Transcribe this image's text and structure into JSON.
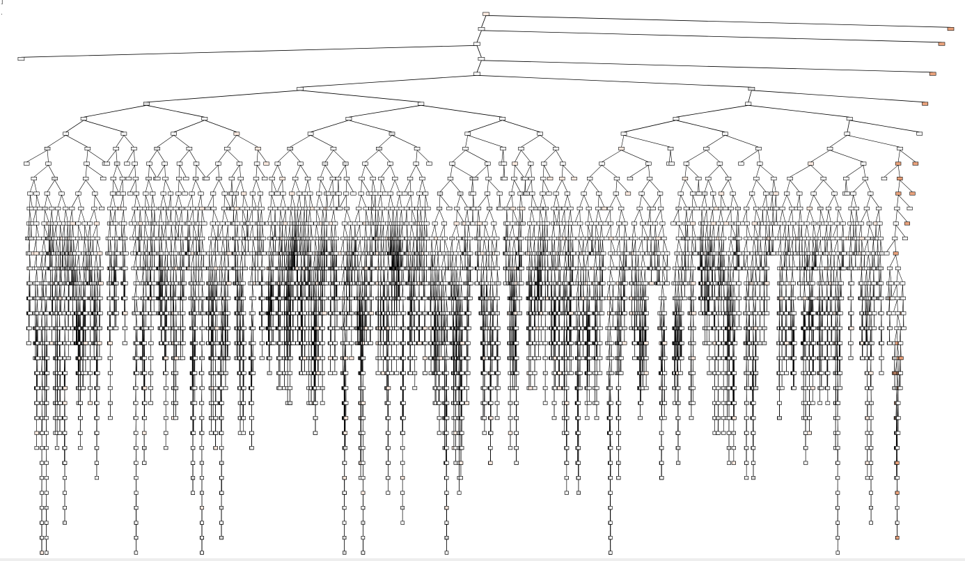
{
  "cell": {
    "bracket_text": "]",
    "dot_text": "·"
  },
  "tree": {
    "max_depth": 37,
    "node_fill_light": "#f4f4f4",
    "node_fill_orange": "#e9a27c",
    "edge_color": "#000000",
    "node_border": "#000000"
  },
  "icons": {
    "output": "decision-tree-plot"
  }
}
